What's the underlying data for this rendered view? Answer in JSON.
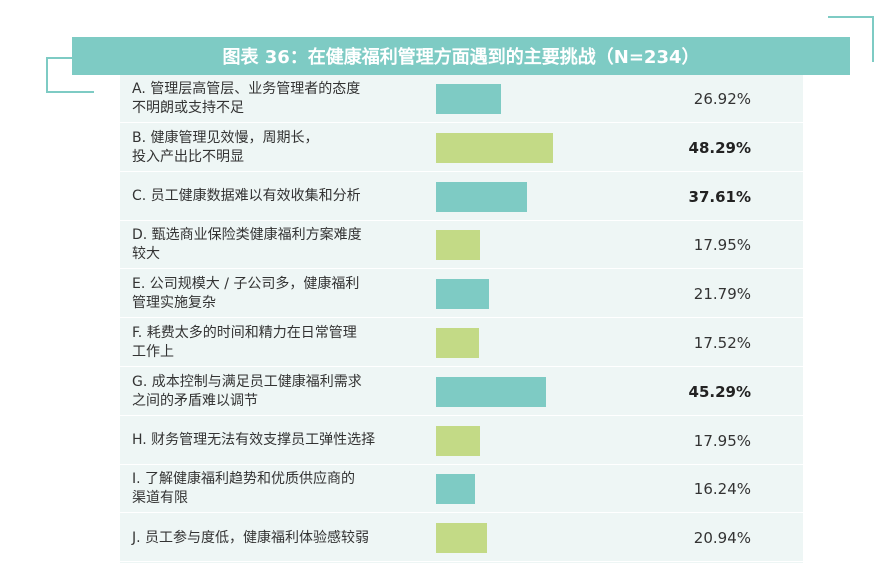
{
  "chart_data": {
    "type": "bar",
    "orientation": "horizontal",
    "title": "图表 36：在健康福利管理方面遇到的主要挑战（N=234）",
    "categories": [
      "A. 管理层高管层、业务管理者的态度\n不明朗或支持不足",
      "B. 健康管理见效慢，周期长，\n投入产出比不明显",
      "C. 员工健康数据难以有效收集和分析",
      "D. 甄选商业保险类健康福利方案难度\n较大",
      "E. 公司规模大 / 子公司多，健康福利\n管理实施复杂",
      "F. 耗费太多的时间和精力在日常管理\n工作上",
      "G. 成本控制与满足员工健康福利需求\n之间的矛盾难以调节",
      "H. 财务管理无法有效支撑员工弹性选择",
      "I. 了解健康福利趋势和优质供应商的\n渠道有限",
      "J. 员工参与度低，健康福利体验感较弱"
    ],
    "values": [
      26.92,
      48.29,
      37.61,
      17.95,
      21.79,
      17.52,
      45.29,
      17.95,
      16.24,
      20.94
    ],
    "value_labels": [
      "26.92%",
      "48.29%",
      "37.61%",
      "17.95%",
      "21.79%",
      "17.52%",
      "45.29%",
      "17.95%",
      "16.24%",
      "20.94%"
    ],
    "bold_values": [
      false,
      true,
      true,
      false,
      false,
      false,
      true,
      false,
      false,
      false
    ],
    "xlim": [
      0,
      100
    ],
    "colors": [
      "#7ecbc4",
      "#c3da86"
    ]
  }
}
